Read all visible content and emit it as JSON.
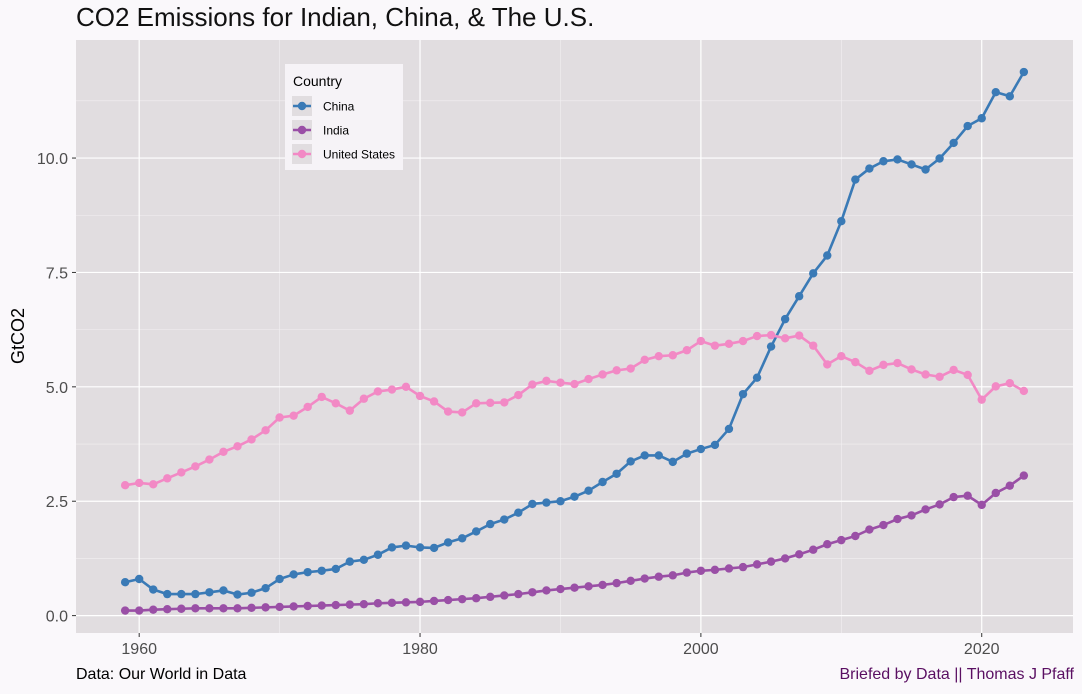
{
  "chart_data": {
    "type": "line",
    "title": "CO2 Emissions for Indian, China, & The U.S.",
    "xlabel": "",
    "ylabel": "GtCO2",
    "xlim": [
      1955.5,
      2026.5
    ],
    "ylim": [
      -0.38,
      12.58
    ],
    "x_ticks": [
      1960,
      1980,
      2000,
      2020
    ],
    "x_tick_labels": [
      "1960",
      "1980",
      "2000",
      "2020"
    ],
    "y_ticks": [
      0,
      2.5,
      5,
      7.5,
      10
    ],
    "y_tick_labels": [
      "0.0",
      "2.5",
      "5.0",
      "7.5",
      "10.0"
    ],
    "grid": true,
    "legend": {
      "title": "Country",
      "placement": "top-left inside"
    },
    "x": [
      1959,
      1960,
      1961,
      1962,
      1963,
      1964,
      1965,
      1966,
      1967,
      1968,
      1969,
      1970,
      1971,
      1972,
      1973,
      1974,
      1975,
      1976,
      1977,
      1978,
      1979,
      1980,
      1981,
      1982,
      1983,
      1984,
      1985,
      1986,
      1987,
      1988,
      1989,
      1990,
      1991,
      1992,
      1993,
      1994,
      1995,
      1996,
      1997,
      1998,
      1999,
      2000,
      2001,
      2002,
      2003,
      2004,
      2005,
      2006,
      2007,
      2008,
      2009,
      2010,
      2011,
      2012,
      2013,
      2014,
      2015,
      2016,
      2017,
      2018,
      2019,
      2020,
      2021,
      2022,
      2023
    ],
    "series": [
      {
        "name": "China",
        "color": "#3a7ab6",
        "values": [
          0.73,
          0.8,
          0.57,
          0.47,
          0.47,
          0.47,
          0.51,
          0.55,
          0.46,
          0.5,
          0.6,
          0.8,
          0.9,
          0.95,
          0.98,
          1.02,
          1.18,
          1.22,
          1.33,
          1.49,
          1.53,
          1.49,
          1.48,
          1.6,
          1.69,
          1.84,
          2.0,
          2.1,
          2.25,
          2.44,
          2.47,
          2.5,
          2.6,
          2.73,
          2.92,
          3.1,
          3.37,
          3.5,
          3.5,
          3.36,
          3.54,
          3.64,
          3.73,
          4.08,
          4.84,
          5.2,
          5.88,
          6.48,
          6.98,
          7.48,
          7.87,
          8.62,
          9.53,
          9.77,
          9.93,
          9.97,
          9.86,
          9.75,
          9.99,
          10.33,
          10.7,
          10.87,
          11.44,
          11.35,
          11.88
        ]
      },
      {
        "name": "India",
        "color": "#9a4fa6",
        "values": [
          0.11,
          0.11,
          0.13,
          0.14,
          0.15,
          0.16,
          0.16,
          0.16,
          0.16,
          0.17,
          0.18,
          0.19,
          0.2,
          0.21,
          0.22,
          0.23,
          0.24,
          0.25,
          0.27,
          0.28,
          0.29,
          0.3,
          0.32,
          0.34,
          0.36,
          0.38,
          0.41,
          0.44,
          0.47,
          0.51,
          0.55,
          0.58,
          0.61,
          0.64,
          0.67,
          0.71,
          0.76,
          0.81,
          0.85,
          0.88,
          0.94,
          0.98,
          1.0,
          1.03,
          1.06,
          1.12,
          1.18,
          1.25,
          1.34,
          1.44,
          1.56,
          1.65,
          1.74,
          1.88,
          1.98,
          2.11,
          2.19,
          2.32,
          2.43,
          2.59,
          2.62,
          2.42,
          2.68,
          2.84,
          3.06
        ]
      },
      {
        "name": "United States",
        "color": "#f289c5",
        "values": [
          2.85,
          2.9,
          2.87,
          3.0,
          3.13,
          3.26,
          3.41,
          3.58,
          3.7,
          3.85,
          4.05,
          4.33,
          4.37,
          4.56,
          4.78,
          4.64,
          4.48,
          4.74,
          4.9,
          4.94,
          5.0,
          4.8,
          4.68,
          4.46,
          4.44,
          4.64,
          4.65,
          4.66,
          4.82,
          5.05,
          5.13,
          5.09,
          5.06,
          5.17,
          5.27,
          5.36,
          5.4,
          5.59,
          5.67,
          5.69,
          5.8,
          6.0,
          5.9,
          5.94,
          6.0,
          6.11,
          6.13,
          6.06,
          6.12,
          5.9,
          5.49,
          5.67,
          5.54,
          5.35,
          5.48,
          5.52,
          5.38,
          5.27,
          5.22,
          5.37,
          5.26,
          4.72,
          5.01,
          5.08,
          4.91
        ]
      }
    ]
  },
  "captions": {
    "source": "Data: Our World in Data",
    "credit": "Briefed by Data || Thomas J Pfaff"
  },
  "colors": {
    "panel_background": "#e1dde0",
    "page_background": "#faf8fb",
    "legend_background": "#f6f3f7",
    "grid_major": "#ffffff",
    "grid_minor": "#f2f0f2",
    "credit_text": "#5a0f62"
  }
}
